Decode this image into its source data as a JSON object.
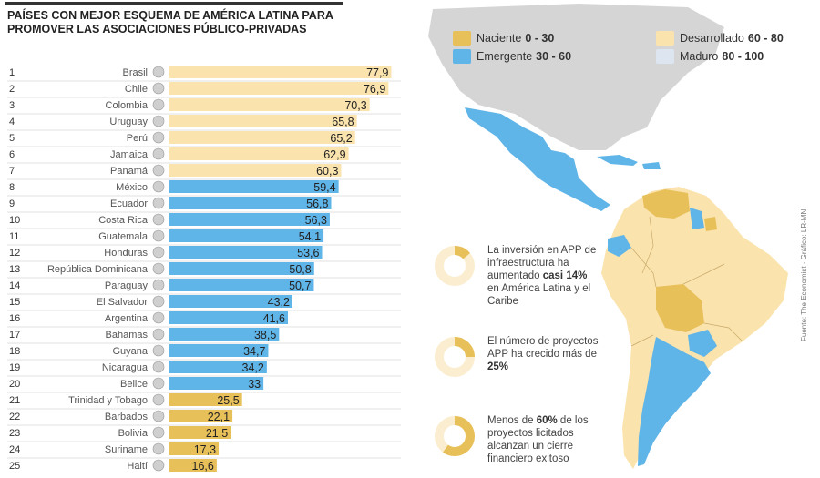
{
  "title": "PAÍSES CON MEJOR ESQUEMA DE AMÉRICA LATINA PARA PROMOVER LAS ASOCIACIONES PÚBLICO-PRIVADAS",
  "legend": [
    {
      "label": "Naciente",
      "range": "0 - 30",
      "color": "#e8c05a"
    },
    {
      "label": "Emergente",
      "range": "30 - 60",
      "color": "#5fb4e8"
    },
    {
      "label": "Desarrollado",
      "range": "60 - 80",
      "color": "#fae3ad"
    },
    {
      "label": "Maduro",
      "range": "80 - 100",
      "color": "#dde6f0"
    }
  ],
  "stats": [
    {
      "pct": 14,
      "text_pre": "La inversión en APP de infraestructura ha aumentado ",
      "text_bold": "casi 14%",
      "text_post": " en América Latina y el Caribe"
    },
    {
      "pct": 25,
      "text_pre": "El número de proyectos APP ha crecido más de ",
      "text_bold": "25%",
      "text_post": ""
    },
    {
      "pct": 60,
      "text_pre": "Menos de ",
      "text_bold": "60%",
      "text_post": " de los proyectos licitados alcanzan un cierre financiero exitoso"
    }
  ],
  "source": "Fuente: The Economist · Gráfico: LR-MN",
  "colors": {
    "desarrollado": "#fae3ad",
    "emergente": "#5fb4e8",
    "naciente": "#e8c05a",
    "map_land": "#fae3ad",
    "map_gray": "#d5d5d5"
  },
  "chart_data": {
    "type": "bar",
    "orientation": "horizontal",
    "title": "PAÍSES CON MEJOR ESQUEMA DE AMÉRICA LATINA PARA PROMOVER LAS ASOCIACIONES PÚBLICO-PRIVADAS",
    "xlim": [
      0,
      80
    ],
    "ranks": [
      "1",
      "2",
      "3",
      "4",
      "5",
      "6",
      "7",
      "8",
      "9",
      "10",
      "11",
      "12",
      "13",
      "14",
      "15",
      "16",
      "17",
      "18",
      "19",
      "20",
      "21",
      "22",
      "23",
      "24",
      "25"
    ],
    "categories": [
      "Brasil",
      "Chile",
      "Colombia",
      "Uruguay",
      "Perú",
      "Jamaica",
      "Panamá",
      "México",
      "Ecuador",
      "Costa Rica",
      "Guatemala",
      "Honduras",
      "República Dominicana",
      "Paraguay",
      "El Salvador",
      "Argentina",
      "Bahamas",
      "Guyana",
      "Nicaragua",
      "Belice",
      "Trinidad y Tobago",
      "Barbados",
      "Bolivia",
      "Suriname",
      "Haití"
    ],
    "values": [
      77.9,
      76.9,
      70.3,
      65.8,
      65.2,
      62.9,
      60.3,
      59.4,
      56.8,
      56.3,
      54.1,
      53.6,
      50.8,
      50.7,
      43.2,
      41.6,
      38.5,
      34.7,
      34.2,
      33,
      25.5,
      22.1,
      21.5,
      17.3,
      16.6
    ],
    "value_labels": [
      "77,9",
      "76,9",
      "70,3",
      "65,8",
      "65,2",
      "62,9",
      "60,3",
      "59,4",
      "56,8",
      "56,3",
      "54,1",
      "53,6",
      "50,8",
      "50,7",
      "43,2",
      "41,6",
      "38,5",
      "34,7",
      "34,2",
      "33",
      "25,5",
      "22,1",
      "21,5",
      "17,3",
      "16,6"
    ]
  }
}
